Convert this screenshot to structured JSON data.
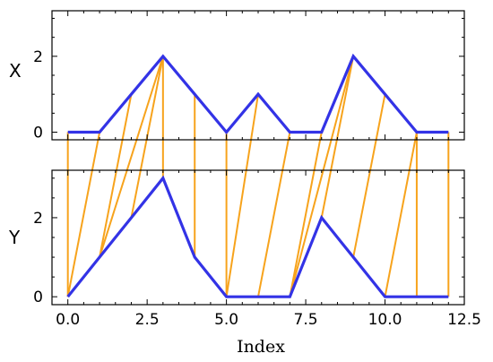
{
  "chart_data": {
    "type": "line",
    "colors": {
      "series": "#3333e6",
      "matches": "#f7a31c"
    },
    "axes": [
      {
        "id": "x",
        "ylabel": "X",
        "ylim": [
          -0.2,
          3.2
        ],
        "yticks": [
          {
            "value": 0,
            "label": "0"
          },
          {
            "value": 2,
            "label": "2"
          }
        ],
        "series": [
          {
            "x": [
              0,
              1,
              2,
              3,
              4,
              5,
              6,
              7,
              8,
              9,
              10,
              11,
              12
            ],
            "y": [
              0,
              0,
              1,
              2,
              1,
              0,
              1,
              0,
              0,
              2,
              1,
              0,
              0
            ]
          }
        ]
      },
      {
        "id": "y",
        "ylabel": "Y",
        "ylim": [
          -0.2,
          3.2
        ],
        "yticks": [
          {
            "value": 0,
            "label": "0"
          },
          {
            "value": 2,
            "label": "2"
          }
        ],
        "series": [
          {
            "x": [
              0,
              1,
              2,
              3,
              4,
              5,
              6,
              7,
              8,
              9,
              10,
              11,
              12
            ],
            "y": [
              0,
              1,
              2,
              3,
              1,
              0,
              0,
              0,
              2,
              1,
              0,
              0,
              0
            ]
          }
        ]
      }
    ],
    "xlabel": "Index",
    "xlim": [
      -0.5,
      12.5
    ],
    "xticks": [
      {
        "value": 0,
        "label": "0.0"
      },
      {
        "value": 2.5,
        "label": "2.5"
      },
      {
        "value": 5,
        "label": "5.0"
      },
      {
        "value": 7.5,
        "label": "7.5"
      },
      {
        "value": 10,
        "label": "10.0"
      },
      {
        "value": 12.5,
        "label": "12.5"
      }
    ],
    "matches": [
      [
        0,
        0
      ],
      [
        1,
        0
      ],
      [
        2,
        1
      ],
      [
        3,
        1
      ],
      [
        3,
        2
      ],
      [
        3,
        3
      ],
      [
        4,
        4
      ],
      [
        5,
        5
      ],
      [
        6,
        5
      ],
      [
        7,
        6
      ],
      [
        8,
        7
      ],
      [
        9,
        7
      ],
      [
        9,
        8
      ],
      [
        10,
        9
      ],
      [
        11,
        10
      ],
      [
        11,
        11
      ],
      [
        12,
        12
      ]
    ]
  }
}
